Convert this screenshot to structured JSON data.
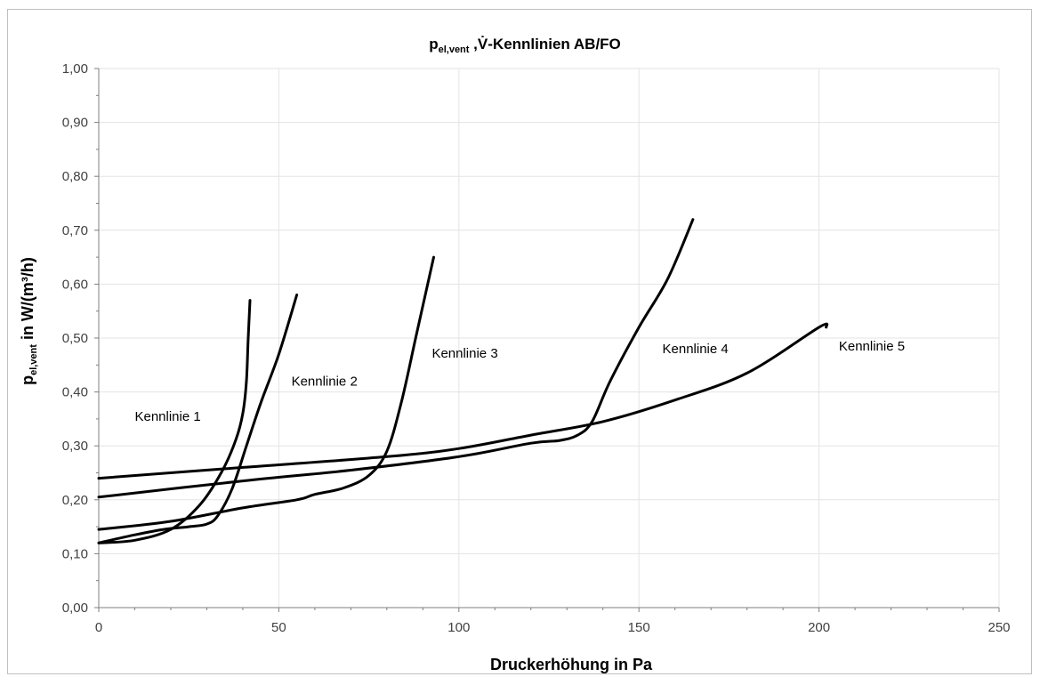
{
  "chart_data": {
    "type": "line",
    "title_parts": [
      "p",
      "el,vent",
      " ,",
      "V̇",
      "-Kennlinien AB/FO"
    ],
    "xlabel": "Druckerhöhung  in Pa",
    "ylabel_parts": [
      "p",
      "el,vent",
      " in W/(m³/h)"
    ],
    "xlim": [
      0,
      250
    ],
    "ylim": [
      0,
      1.0
    ],
    "x_ticks": [
      0,
      50,
      100,
      150,
      200,
      250
    ],
    "x_tick_labels": [
      "0",
      "50",
      "100",
      "150",
      "200",
      "250"
    ],
    "y_ticks": [
      0,
      0.1,
      0.2,
      0.3,
      0.4,
      0.5,
      0.6,
      0.7,
      0.8,
      0.9,
      1.0
    ],
    "y_tick_labels": [
      "0,00",
      "0,10",
      "0,20",
      "0,30",
      "0,40",
      "0,50",
      "0,60",
      "0,70",
      "0,80",
      "0,90",
      "1,00"
    ],
    "grid": true,
    "series": [
      {
        "name": "Kennlinie 1",
        "x": [
          0,
          10,
          20,
          28,
          34,
          38,
          40,
          41,
          41.5,
          42
        ],
        "y": [
          0.12,
          0.125,
          0.145,
          0.19,
          0.25,
          0.31,
          0.36,
          0.42,
          0.5,
          0.57
        ]
      },
      {
        "name": "Kennlinie 2",
        "x": [
          0,
          10,
          18,
          25,
          30,
          33,
          37,
          41,
          45,
          50,
          55
        ],
        "y": [
          0.12,
          0.135,
          0.145,
          0.15,
          0.155,
          0.17,
          0.22,
          0.3,
          0.38,
          0.47,
          0.58
        ]
      },
      {
        "name": "Kennlinie 3",
        "x": [
          0,
          20,
          40,
          55,
          60,
          68,
          75,
          80,
          84,
          88,
          93
        ],
        "y": [
          0.145,
          0.16,
          0.185,
          0.2,
          0.21,
          0.222,
          0.245,
          0.29,
          0.38,
          0.5,
          0.65
        ]
      },
      {
        "name": "Kennlinie 4",
        "x": [
          0,
          40,
          70,
          100,
          120,
          128,
          133,
          137,
          142,
          150,
          158,
          165
        ],
        "y": [
          0.205,
          0.235,
          0.255,
          0.28,
          0.305,
          0.31,
          0.32,
          0.345,
          0.42,
          0.52,
          0.61,
          0.72
        ]
      },
      {
        "name": "Kennlinie 5",
        "x": [
          0,
          40,
          80,
          100,
          120,
          140,
          160,
          180,
          200,
          202
        ],
        "y": [
          0.24,
          0.26,
          0.28,
          0.295,
          0.32,
          0.345,
          0.385,
          0.435,
          0.52,
          0.52
        ]
      }
    ],
    "annotations": [
      {
        "text": "Kennlinie 1",
        "x": 10,
        "y": 0.355
      },
      {
        "text": "Kennlinie 2",
        "x": 53.5,
        "y": 0.42
      },
      {
        "text": "Kennlinie 3",
        "x": 92.5,
        "y": 0.472
      },
      {
        "text": "Kennlinie 4",
        "x": 156.5,
        "y": 0.48
      },
      {
        "text": "Kennlinie 5",
        "x": 205.5,
        "y": 0.485
      }
    ],
    "colors": {
      "line": "#000000",
      "grid": "#e3e3e3",
      "axis": "#7f7f7f",
      "tick_text": "#404040"
    }
  }
}
